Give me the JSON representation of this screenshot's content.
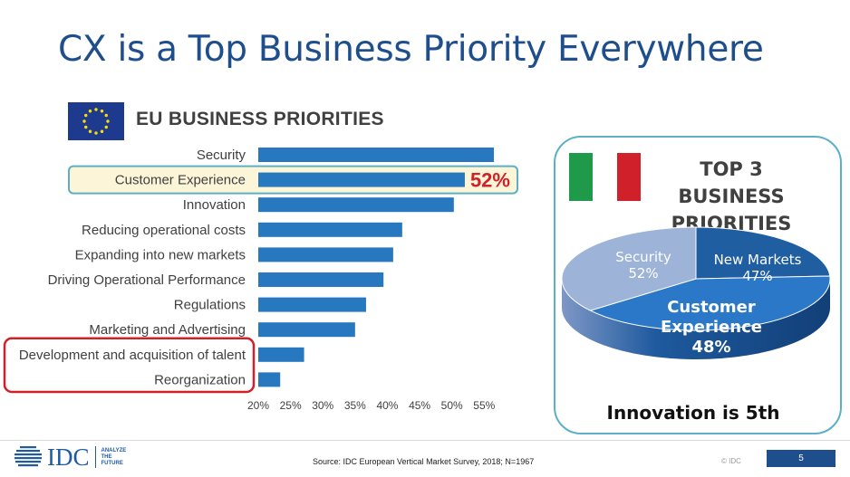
{
  "slide": {
    "title": "CX is a Top Business Priority Everywhere",
    "eu_title": "EU BUSINESS PRIORITIES",
    "top3_line1": "TOP 3 BUSINESS",
    "top3_line2": "PRIORITIES",
    "innovation_note": "Innovation is 5th",
    "source": "Source: IDC European Vertical Market Survey, 2018; N=1967",
    "copyright": "© IDC",
    "page_number": "5",
    "logo_text": "IDC",
    "logo_tagline": [
      "ANALYZE",
      "THE",
      "FUTURE"
    ]
  },
  "colors": {
    "title": "#1f4e8c",
    "bar": "#2878c0",
    "highlight_fill": "#fdf5d8",
    "highlight_border": "#5bb0c7",
    "red": "#d0202a",
    "pie_security": "#9db3d8",
    "pie_new_markets": "#1f5ea0",
    "pie_customer_experience": "#2b78c8"
  },
  "chart_data": [
    {
      "type": "bar",
      "orientation": "horizontal",
      "categories": [
        "Security",
        "Customer Experience",
        "Innovation",
        "Reducing operational costs",
        "Expanding into new markets",
        "Driving Operational Performance",
        "Regulations",
        "Marketing and Advertising",
        "Development and acquisition of talent",
        "Reorganization"
      ],
      "values": [
        56.5,
        52,
        50.3,
        42.3,
        40.9,
        39.4,
        36.7,
        35,
        27.1,
        23.4
      ],
      "xlim": [
        20,
        57
      ],
      "ticks": [
        "20%",
        "25%",
        "30%",
        "35%",
        "40%",
        "45%",
        "50%",
        "55%"
      ],
      "tick_values": [
        20,
        25,
        30,
        35,
        40,
        45,
        50,
        55
      ],
      "highlight": {
        "category": "Customer Experience",
        "label": "52%"
      },
      "boxed_group": [
        "Development and acquisition of talent",
        "Reorganization"
      ],
      "grid": false
    },
    {
      "type": "pie",
      "style": "3d",
      "slices": [
        {
          "label": "Security",
          "value_label": "52%"
        },
        {
          "label": "New Markets",
          "value_label": "47%"
        },
        {
          "label_lines": [
            "Customer",
            "Experience"
          ],
          "value_label": "48%"
        }
      ]
    }
  ]
}
